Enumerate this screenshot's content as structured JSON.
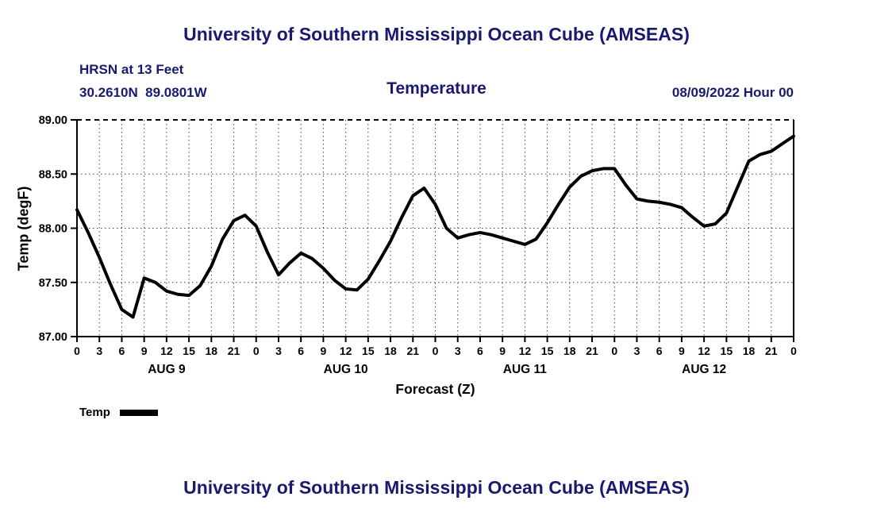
{
  "page": {
    "top_title": "University of Southern Mississippi Ocean Cube (AMSEAS)",
    "bottom_title": "University of Southern Mississippi Ocean Cube (AMSEAS)",
    "station_line1": "HRSN at 13 Feet",
    "station_line2": "30.2610N  89.0801W",
    "datetime_label": "08/09/2022 Hour 00",
    "legend_label": "Temp"
  },
  "colors": {
    "title_text": "#191970",
    "axis": "#000000",
    "series_line": "#000000",
    "grid": "#444444"
  },
  "chart_data": {
    "type": "line",
    "title": "Temperature",
    "xlabel": "Forecast (Z)",
    "ylabel": "Temp (degF)",
    "xlim": [
      0,
      96
    ],
    "ylim": [
      87.0,
      89.0
    ],
    "grid": true,
    "grid_style": "dotted",
    "legend_position": "below-left",
    "y_ticks": [
      87.0,
      87.5,
      88.0,
      88.5,
      89.0
    ],
    "y_tick_labels": [
      "87.00",
      "87.50",
      "88.00",
      "88.50",
      "89.00"
    ],
    "x_tick_interval_hours": 3,
    "x_tick_labels": [
      "0",
      "3",
      "6",
      "9",
      "12",
      "15",
      "18",
      "21",
      "0",
      "3",
      "6",
      "9",
      "12",
      "15",
      "18",
      "21",
      "0",
      "3",
      "6",
      "9",
      "12",
      "15",
      "18",
      "21",
      "0",
      "3",
      "6",
      "9",
      "12",
      "15",
      "18",
      "21",
      "0"
    ],
    "day_labels": [
      {
        "label": "AUG 9",
        "x_hours": 12
      },
      {
        "label": "AUG 10",
        "x_hours": 36
      },
      {
        "label": "AUG 11",
        "x_hours": 60
      },
      {
        "label": "AUG 12",
        "x_hours": 84
      }
    ],
    "series": [
      {
        "name": "Temp",
        "color": "#000000",
        "x_start_hours": 0,
        "x_step_hours": 1.5,
        "values": [
          88.17,
          87.96,
          87.73,
          87.48,
          87.25,
          87.18,
          87.54,
          87.5,
          87.42,
          87.39,
          87.38,
          87.47,
          87.65,
          87.9,
          88.07,
          88.12,
          88.02,
          87.78,
          87.57,
          87.68,
          87.77,
          87.72,
          87.63,
          87.52,
          87.44,
          87.43,
          87.53,
          87.7,
          87.88,
          88.1,
          88.3,
          88.37,
          88.22,
          88.0,
          87.91,
          87.94,
          87.96,
          87.94,
          87.91,
          87.88,
          87.85,
          87.9,
          88.05,
          88.22,
          88.38,
          88.48,
          88.53,
          88.55,
          88.55,
          88.4,
          88.27,
          88.25,
          88.24,
          88.22,
          88.19,
          88.1,
          88.02,
          88.04,
          88.14,
          88.38,
          88.62,
          88.68,
          88.71,
          88.78,
          88.85
        ]
      }
    ]
  }
}
